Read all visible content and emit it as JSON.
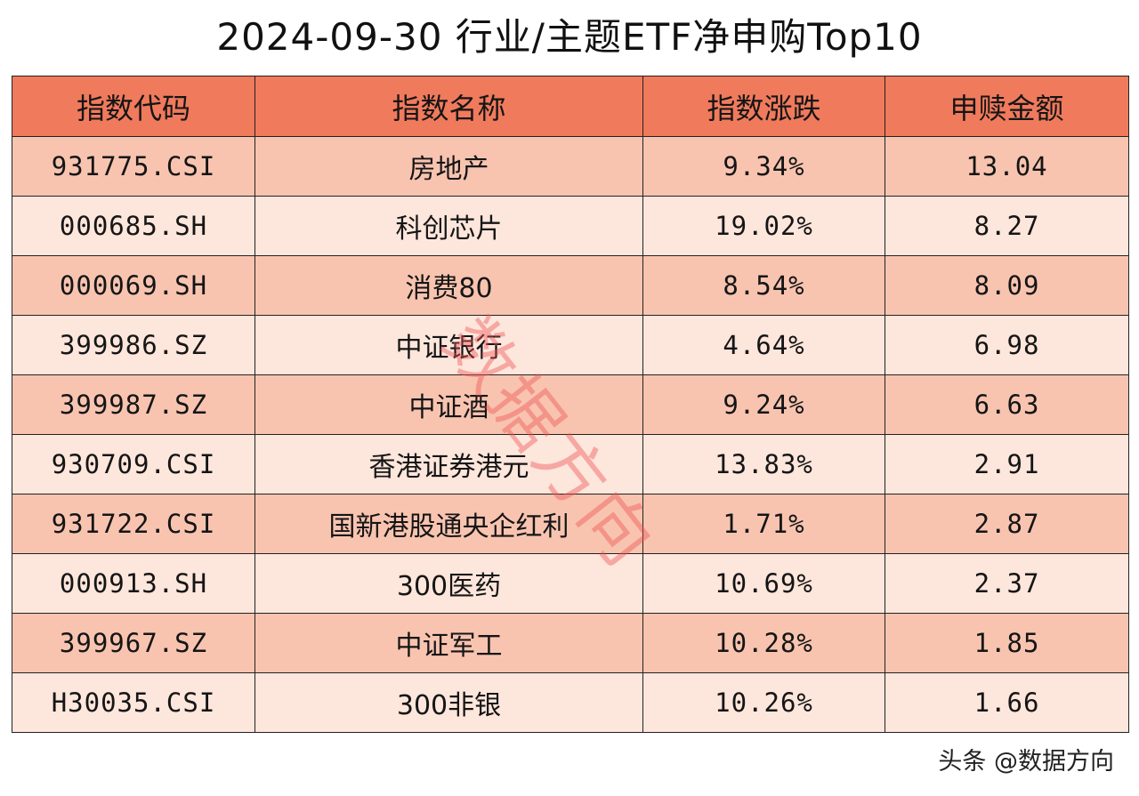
{
  "title": "2024-09-30 行业/主题ETF净申购Top10",
  "headers": [
    "指数代码",
    "指数名称",
    "指数涨跌",
    "申赎金额"
  ],
  "rows": [
    {
      "code": "931775.CSI",
      "name": "房地产",
      "change": "9.34%",
      "amount": "13.04"
    },
    {
      "code": "000685.SH",
      "name": "科创芯片",
      "change": "19.02%",
      "amount": "8.27"
    },
    {
      "code": "000069.SH",
      "name": "消费80",
      "change": "8.54%",
      "amount": "8.09"
    },
    {
      "code": "399986.SZ",
      "name": "中证银行",
      "change": "4.64%",
      "amount": "6.98"
    },
    {
      "code": "399987.SZ",
      "name": "中证酒",
      "change": "9.24%",
      "amount": "6.63"
    },
    {
      "code": "930709.CSI",
      "name": "香港证券港元",
      "change": "13.83%",
      "amount": "2.91"
    },
    {
      "code": "931722.CSI",
      "name": "国新港股通央企红利",
      "change": "1.71%",
      "amount": "2.87"
    },
    {
      "code": "000913.SH",
      "name": "300医药",
      "change": "10.69%",
      "amount": "2.37"
    },
    {
      "code": "399967.SZ",
      "name": "中证军工",
      "change": "10.28%",
      "amount": "1.85"
    },
    {
      "code": "H30035.CSI",
      "name": "300非银",
      "change": "10.26%",
      "amount": "1.66"
    }
  ],
  "watermark": "数据方向",
  "footer": "头条 @数据方向",
  "colors": {
    "header_bg": "#f07a5c",
    "row_odd_bg": "#f8c4b0",
    "row_even_bg": "#fde6dc",
    "watermark": "#ee5252"
  }
}
